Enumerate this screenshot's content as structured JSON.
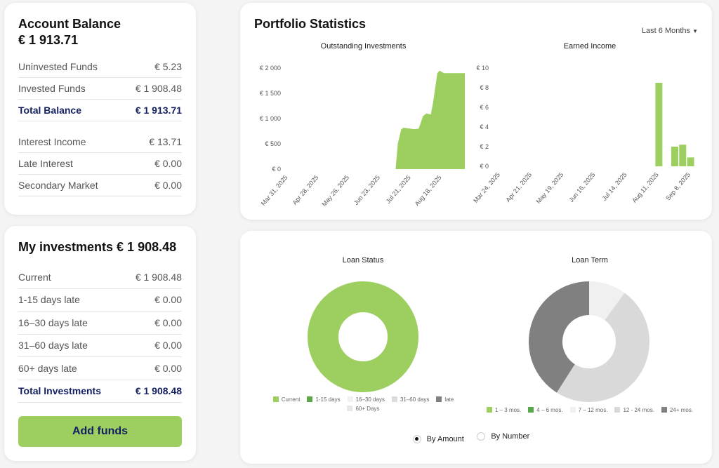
{
  "account": {
    "title": "Account Balance",
    "total": "€ 1 913.71",
    "rows": [
      {
        "label": "Uninvested Funds",
        "value": "€ 5.23"
      },
      {
        "label": "Invested Funds",
        "value": "€ 1 908.48"
      },
      {
        "label": "Total Balance",
        "value": "€ 1 913.71",
        "total": true
      }
    ],
    "rows2": [
      {
        "label": "Interest Income",
        "value": "€ 13.71"
      },
      {
        "label": "Late Interest",
        "value": "€ 0.00"
      },
      {
        "label": "Secondary Market",
        "value": "€ 0.00"
      }
    ]
  },
  "investments": {
    "title": "My investments € 1 908.48",
    "rows": [
      {
        "label": "Current",
        "value": "€ 1 908.48"
      },
      {
        "label": "1-15 days late",
        "value": "€ 0.00"
      },
      {
        "label": "16–30 days late",
        "value": "€ 0.00"
      },
      {
        "label": "31–60 days late",
        "value": "€ 0.00"
      },
      {
        "label": "60+ days late",
        "value": "€ 0.00"
      },
      {
        "label": "Total Investments",
        "value": "€ 1 908.48",
        "total": true
      }
    ],
    "add_funds": "Add funds"
  },
  "portfolio": {
    "title": "Portfolio Statistics",
    "period": "Last 6 Months"
  },
  "toggle": {
    "by_amount": "By Amount",
    "by_number": "By Number",
    "selected": "By Amount"
  },
  "colors": {
    "accent": "#9ccf5f",
    "navy": "#142060"
  },
  "chart_data": [
    {
      "type": "area",
      "title": "Outstanding Investments",
      "xlim": [
        "2025-03-31",
        "2025-09-08"
      ],
      "ylim": [
        0,
        2000
      ],
      "yticks": [
        "€ 0",
        "€ 500",
        "€ 1 000",
        "€ 1 500",
        "€ 2 000"
      ],
      "ytick_values": [
        0,
        500,
        1000,
        1500,
        2000
      ],
      "xticks": [
        "Mar 31, 2025",
        "Apr 28, 2025",
        "May 26, 2025",
        "Jun 23, 2025",
        "Jul 21, 2025",
        "Aug 18, 2025"
      ],
      "xtick_dates": [
        "2025-03-31",
        "2025-04-28",
        "2025-05-26",
        "2025-06-23",
        "2025-07-21",
        "2025-08-18"
      ],
      "x": [
        "2025-07-07",
        "2025-07-09",
        "2025-07-12",
        "2025-07-14",
        "2025-07-24",
        "2025-07-28",
        "2025-08-01",
        "2025-08-04",
        "2025-08-08",
        "2025-08-10",
        "2025-08-14",
        "2025-08-16",
        "2025-08-20",
        "2025-09-08"
      ],
      "values": [
        0,
        500,
        780,
        820,
        790,
        800,
        1050,
        1100,
        1080,
        1300,
        1900,
        1950,
        1900,
        1900
      ],
      "color": "#9ccf5f"
    },
    {
      "type": "bar",
      "title": "Earned Income",
      "xlim": [
        "2025-03-20",
        "2025-09-12"
      ],
      "ylim": [
        0,
        10
      ],
      "yticks": [
        "€ 0",
        "€ 2",
        "€ 4",
        "€ 6",
        "€ 8",
        "€ 10"
      ],
      "ytick_values": [
        0,
        2,
        4,
        6,
        8,
        10
      ],
      "xticks": [
        "Mar 24, 2025",
        "Apr 21, 2025",
        "May 19, 2025",
        "Jun 16, 2025",
        "Jul 14, 2025",
        "Aug 11, 2025",
        "Sep 8, 2025"
      ],
      "xtick_dates": [
        "2025-03-24",
        "2025-04-21",
        "2025-05-19",
        "2025-06-16",
        "2025-07-14",
        "2025-08-11",
        "2025-09-08"
      ],
      "x": [
        "2025-08-11",
        "2025-08-25",
        "2025-09-01",
        "2025-09-08"
      ],
      "values": [
        8.5,
        2.0,
        2.2,
        0.9
      ],
      "color": "#9ccf5f"
    },
    {
      "type": "pie",
      "title": "Loan Status",
      "donut": true,
      "labels": [
        "Current",
        "1-15 days",
        "16–30 days",
        "31–60 days",
        "late",
        "60+ Days"
      ],
      "values": [
        100,
        0,
        0,
        0,
        0,
        0
      ],
      "colors": [
        "#9ccf5f",
        "#5aa84a",
        "#f2f2f2",
        "#dcdcdc",
        "#808080",
        "#e8e8e8"
      ]
    },
    {
      "type": "pie",
      "title": "Loan Term",
      "donut": true,
      "labels": [
        "1 – 3 mos.",
        "4 – 6 mos.",
        "7 – 12 mos.",
        "12 - 24 mos.",
        "24+ mos."
      ],
      "values": [
        0,
        0,
        10,
        49,
        41
      ],
      "colors": [
        "#9ccf5f",
        "#5aa84a",
        "#f0f0f0",
        "#d9d9d9",
        "#808080"
      ]
    }
  ]
}
